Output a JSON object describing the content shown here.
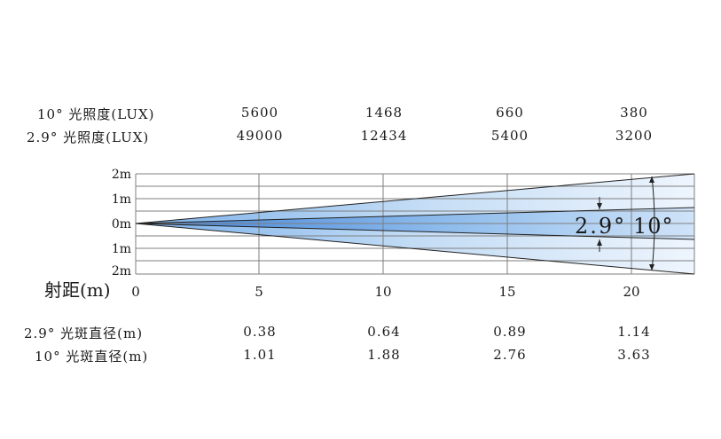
{
  "illuminance": {
    "rows": [
      {
        "label": "10° 光照度(LUX)",
        "values": [
          "5600",
          "1468",
          "660",
          "380"
        ]
      },
      {
        "label": "2.9° 光照度(LUX)",
        "values": [
          "49000",
          "12434",
          "5400",
          "3200"
        ]
      }
    ]
  },
  "beam_diagram": {
    "y_ticks": [
      "2m",
      "1m",
      "0m",
      "1m",
      "2m"
    ],
    "x_ticks": [
      "0",
      "5",
      "10",
      "15",
      "20"
    ],
    "x_axis_label": "射距(m)",
    "angle_labels": [
      "2.9°",
      "10°"
    ],
    "colors": {
      "beam_dark": "#3d7fd6",
      "beam_light": "#e6f1fc",
      "grid": "#7f7f7f"
    }
  },
  "spot_diameter": {
    "rows": [
      {
        "label": "2.9° 光斑直径(m)",
        "values": [
          "0.38",
          "0.64",
          "0.89",
          "1.14"
        ]
      },
      {
        "label": "10° 光斑直径(m)",
        "values": [
          "1.01",
          "1.88",
          "2.76",
          "3.63"
        ]
      }
    ]
  }
}
